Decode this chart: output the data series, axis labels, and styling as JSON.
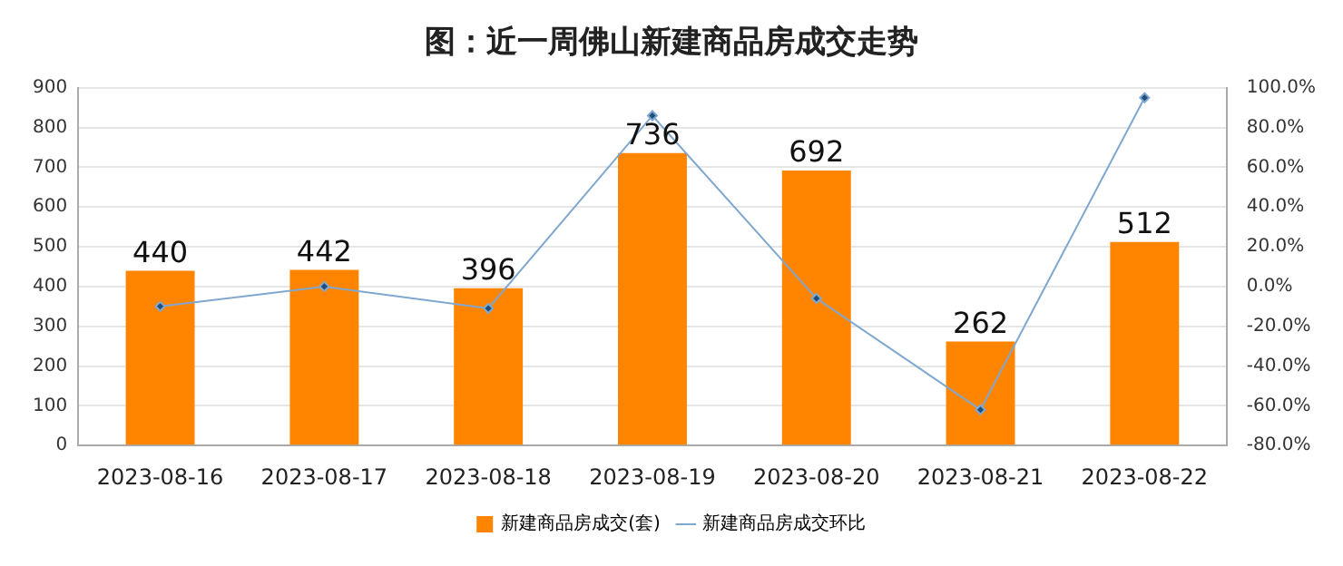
{
  "chart_data": {
    "type": "bar",
    "title": "图：近一周佛山新建商品房成交走势",
    "categories": [
      "2023-08-16",
      "2023-08-17",
      "2023-08-18",
      "2023-08-19",
      "2023-08-20",
      "2023-08-21",
      "2023-08-22"
    ],
    "series": [
      {
        "name": "新建商品房成交(套)",
        "color": "#ff8500",
        "values": [
          440,
          442,
          396,
          736,
          692,
          262,
          512
        ],
        "value_labels": [
          "440",
          "442",
          "396",
          "736",
          "692",
          "262",
          "512"
        ]
      },
      {
        "name": "新建商品房成交环比",
        "type": "line",
        "axis": "y2",
        "color": "#7fa7cf",
        "marker": "diamond",
        "values": [
          -10,
          0,
          -11,
          86,
          -6,
          -62,
          95
        ]
      }
    ],
    "ylim": [
      0,
      900
    ],
    "yticks": [
      0,
      100,
      200,
      300,
      400,
      500,
      600,
      700,
      800,
      900
    ],
    "y2lim": [
      -80,
      100
    ],
    "y2ticks": [
      {
        "value": -80,
        "label": "-80.0%"
      },
      {
        "value": -60,
        "label": "-60.0%"
      },
      {
        "value": -40,
        "label": "-40.0%"
      },
      {
        "value": -20,
        "label": "-20.0%"
      },
      {
        "value": 0,
        "label": "0.0%"
      },
      {
        "value": 20,
        "label": "20.0%"
      },
      {
        "value": 40,
        "label": "40.0%"
      },
      {
        "value": 60,
        "label": "60.0%"
      },
      {
        "value": 80,
        "label": "80.0%"
      },
      {
        "value": 100,
        "label": "100.0%"
      }
    ],
    "grid": "y",
    "legend": "bottom"
  }
}
